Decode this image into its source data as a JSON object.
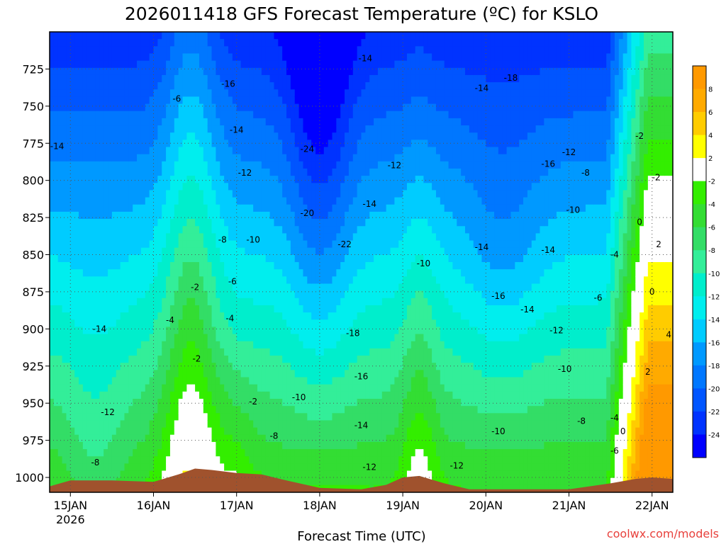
{
  "chart_data": {
    "type": "heatmap",
    "title": "2026011418 GFS Forecast Temperature (ºC) for KSLO",
    "xlabel": "Forecast Time (UTC)",
    "ylabel": "",
    "credit": "coolwx.com/models",
    "x_range": [
      "2026-01-14T18:00Z",
      "2026-01-22T06:00Z"
    ],
    "y_range_hpa": [
      700,
      1010
    ],
    "y_scale": "pressure (inverted)",
    "grid": true,
    "x_ticks": [
      {
        "label": "15JAN",
        "sublabel": "2026",
        "day": 15
      },
      {
        "label": "16JAN",
        "sublabel": "",
        "day": 16
      },
      {
        "label": "17JAN",
        "sublabel": "",
        "day": 17
      },
      {
        "label": "18JAN",
        "sublabel": "",
        "day": 18
      },
      {
        "label": "19JAN",
        "sublabel": "",
        "day": 19
      },
      {
        "label": "20JAN",
        "sublabel": "",
        "day": 20
      },
      {
        "label": "21JAN",
        "sublabel": "",
        "day": 21
      },
      {
        "label": "22JAN",
        "sublabel": "",
        "day": 22
      }
    ],
    "y_ticks": [
      725,
      750,
      775,
      800,
      825,
      850,
      875,
      900,
      925,
      950,
      975,
      1000
    ],
    "colorbar": {
      "placement": "right",
      "labels": [
        "8",
        "6",
        "4",
        "2",
        "-2",
        "-4",
        "-6",
        "-8",
        "-10",
        "-12",
        "-14",
        "-16",
        "-18",
        "-20",
        "-22",
        "-24"
      ],
      "bins": [
        {
          "lo": 8,
          "hi": 10,
          "color": "#ff9900"
        },
        {
          "lo": 6,
          "hi": 8,
          "color": "#ffaa00"
        },
        {
          "lo": 4,
          "hi": 6,
          "color": "#ffcc00"
        },
        {
          "lo": 2,
          "hi": 4,
          "color": "#ffff00"
        },
        {
          "lo": -2,
          "hi": 2,
          "color": "#ffffff"
        },
        {
          "lo": -4,
          "hi": -2,
          "color": "#33ee00"
        },
        {
          "lo": -6,
          "hi": -4,
          "color": "#33dd33"
        },
        {
          "lo": -8,
          "hi": -6,
          "color": "#33dd66"
        },
        {
          "lo": -10,
          "hi": -8,
          "color": "#33ee99"
        },
        {
          "lo": -12,
          "hi": -10,
          "color": "#00eecc"
        },
        {
          "lo": -14,
          "hi": -12,
          "color": "#00eeee"
        },
        {
          "lo": -16,
          "hi": -14,
          "color": "#00ccff"
        },
        {
          "lo": -18,
          "hi": -16,
          "color": "#0099ff"
        },
        {
          "lo": -20,
          "hi": -18,
          "color": "#0077ff"
        },
        {
          "lo": -22,
          "hi": -20,
          "color": "#0055ff"
        },
        {
          "lo": -24,
          "hi": -22,
          "color": "#0033ff"
        },
        {
          "lo": -26,
          "hi": -24,
          "color": "#0000ff"
        }
      ]
    },
    "surface_color": "#a0522d",
    "surface_pressure_hpa": [
      {
        "t": 14.75,
        "p": 1006
      },
      {
        "t": 15.0,
        "p": 1002
      },
      {
        "t": 15.5,
        "p": 1002
      },
      {
        "t": 16.0,
        "p": 1003
      },
      {
        "t": 16.3,
        "p": 998
      },
      {
        "t": 16.5,
        "p": 994
      },
      {
        "t": 16.7,
        "p": 995
      },
      {
        "t": 17.0,
        "p": 997
      },
      {
        "t": 17.3,
        "p": 998
      },
      {
        "t": 17.6,
        "p": 1002
      },
      {
        "t": 18.0,
        "p": 1007
      },
      {
        "t": 18.5,
        "p": 1008
      },
      {
        "t": 18.8,
        "p": 1005
      },
      {
        "t": 19.0,
        "p": 1000
      },
      {
        "t": 19.2,
        "p": 999
      },
      {
        "t": 19.5,
        "p": 1004
      },
      {
        "t": 19.8,
        "p": 1008
      },
      {
        "t": 20.5,
        "p": 1008
      },
      {
        "t": 21.0,
        "p": 1008
      },
      {
        "t": 21.5,
        "p": 1004
      },
      {
        "t": 21.8,
        "p": 1001
      },
      {
        "t": 22.0,
        "p": 1000
      },
      {
        "t": 22.25,
        "p": 1001
      }
    ],
    "contour_labels": [
      {
        "t": 14.84,
        "p": 777,
        "v": "-14"
      },
      {
        "t": 15.35,
        "p": 900,
        "v": "-14"
      },
      {
        "t": 15.45,
        "p": 956,
        "v": "-12"
      },
      {
        "t": 15.3,
        "p": 990,
        "v": "-8"
      },
      {
        "t": 16.28,
        "p": 745,
        "v": "-6"
      },
      {
        "t": 16.5,
        "p": 872,
        "v": "-2"
      },
      {
        "t": 16.2,
        "p": 894,
        "v": "-4"
      },
      {
        "t": 16.52,
        "p": 920,
        "v": "-2"
      },
      {
        "t": 16.9,
        "p": 735,
        "v": "-16"
      },
      {
        "t": 17.0,
        "p": 766,
        "v": "-14"
      },
      {
        "t": 17.1,
        "p": 795,
        "v": "-12"
      },
      {
        "t": 16.83,
        "p": 840,
        "v": "-8"
      },
      {
        "t": 17.2,
        "p": 840,
        "v": "-10"
      },
      {
        "t": 16.95,
        "p": 868,
        "v": "-6"
      },
      {
        "t": 16.92,
        "p": 893,
        "v": "-4"
      },
      {
        "t": 17.2,
        "p": 949,
        "v": "-2"
      },
      {
        "t": 17.85,
        "p": 779,
        "v": "-24"
      },
      {
        "t": 17.85,
        "p": 822,
        "v": "-20"
      },
      {
        "t": 18.3,
        "p": 843,
        "v": "-22"
      },
      {
        "t": 18.55,
        "p": 718,
        "v": "-14"
      },
      {
        "t": 18.9,
        "p": 790,
        "v": "-12"
      },
      {
        "t": 18.6,
        "p": 816,
        "v": "-14"
      },
      {
        "t": 18.4,
        "p": 903,
        "v": "-18"
      },
      {
        "t": 18.5,
        "p": 932,
        "v": "-16"
      },
      {
        "t": 18.5,
        "p": 965,
        "v": "-14"
      },
      {
        "t": 18.6,
        "p": 993,
        "v": "-12"
      },
      {
        "t": 17.75,
        "p": 946,
        "v": "-10"
      },
      {
        "t": 17.45,
        "p": 972,
        "v": "-8"
      },
      {
        "t": 19.25,
        "p": 856,
        "v": "-10"
      },
      {
        "t": 19.95,
        "p": 738,
        "v": "-14"
      },
      {
        "t": 20.3,
        "p": 731,
        "v": "-18"
      },
      {
        "t": 19.95,
        "p": 845,
        "v": "-14"
      },
      {
        "t": 20.15,
        "p": 878,
        "v": "-16"
      },
      {
        "t": 20.15,
        "p": 969,
        "v": "-10"
      },
      {
        "t": 19.65,
        "p": 992,
        "v": "-12"
      },
      {
        "t": 20.75,
        "p": 789,
        "v": "-16"
      },
      {
        "t": 21.0,
        "p": 781,
        "v": "-12"
      },
      {
        "t": 21.2,
        "p": 795,
        "v": "-8"
      },
      {
        "t": 21.05,
        "p": 820,
        "v": "-10"
      },
      {
        "t": 20.75,
        "p": 847,
        "v": "-14"
      },
      {
        "t": 20.5,
        "p": 887,
        "v": "-14"
      },
      {
        "t": 20.85,
        "p": 901,
        "v": "-12"
      },
      {
        "t": 20.95,
        "p": 927,
        "v": "-10"
      },
      {
        "t": 21.15,
        "p": 962,
        "v": "-8"
      },
      {
        "t": 21.35,
        "p": 879,
        "v": "-6"
      },
      {
        "t": 21.55,
        "p": 850,
        "v": "-4"
      },
      {
        "t": 21.55,
        "p": 960,
        "v": "-4"
      },
      {
        "t": 21.55,
        "p": 982,
        "v": "-6"
      },
      {
        "t": 21.65,
        "p": 969,
        "v": "0"
      },
      {
        "t": 21.85,
        "p": 770,
        "v": "-2"
      },
      {
        "t": 22.05,
        "p": 798,
        "v": "-2"
      },
      {
        "t": 21.85,
        "p": 828,
        "v": "0"
      },
      {
        "t": 22.08,
        "p": 843,
        "v": "2"
      },
      {
        "t": 22.0,
        "p": 875,
        "v": "0"
      },
      {
        "t": 22.2,
        "p": 904,
        "v": "4"
      },
      {
        "t": 21.95,
        "p": 929,
        "v": "2"
      }
    ]
  }
}
